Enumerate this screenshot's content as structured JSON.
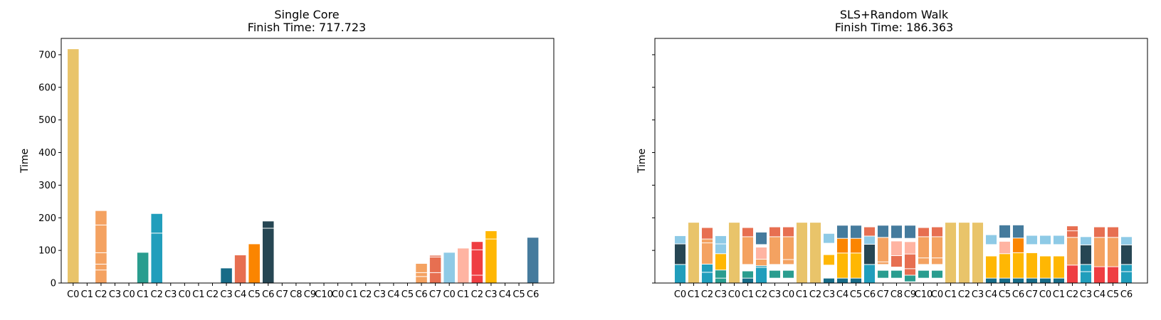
{
  "chart_data": [
    {
      "type": "bar",
      "stacked": true,
      "title": "Single Core",
      "subtitle": "Finish Time: 717.723",
      "xlabel": "",
      "ylabel": "Time",
      "ylim": [
        0,
        750
      ],
      "yticks": [
        0,
        100,
        200,
        300,
        400,
        500,
        600,
        700
      ],
      "grid": false,
      "categories": [
        "C0",
        "C1",
        "C2",
        "C3",
        "C0",
        "C1",
        "C2",
        "C3",
        "C0",
        "C1",
        "C2",
        "C3",
        "C4",
        "C5",
        "C6",
        "C7",
        "C8",
        "C9",
        "C10",
        "C0",
        "C1",
        "C2",
        "C3",
        "C4",
        "C5",
        "C6",
        "C7",
        "C0",
        "C1",
        "C2",
        "C3",
        "C4",
        "C5",
        "C6"
      ],
      "bars": [
        [
          {
            "value": 718,
            "color": "#E9C46A"
          }
        ],
        [],
        [
          {
            "value": 40,
            "color": "#F4A261"
          },
          {
            "value": 18,
            "color": "#F4A261"
          },
          {
            "value": 35,
            "color": "#F4A261"
          },
          {
            "value": 85,
            "color": "#F4A261"
          },
          {
            "value": 44,
            "color": "#F4A261"
          }
        ],
        [],
        [],
        [
          {
            "value": 94,
            "color": "#2A9D8F"
          }
        ],
        [
          {
            "value": 153,
            "color": "#219EBC"
          },
          {
            "value": 60,
            "color": "#219EBC"
          }
        ],
        [],
        [],
        [],
        [],
        [
          {
            "value": 46,
            "color": "#176B87"
          }
        ],
        [
          {
            "value": 86,
            "color": "#E76F51"
          }
        ],
        [
          {
            "value": 120,
            "color": "#FB8500"
          }
        ],
        [
          {
            "value": 168,
            "color": "#264653"
          },
          {
            "value": 22,
            "color": "#264653"
          }
        ],
        [],
        [],
        [],
        [],
        [],
        [],
        [],
        [],
        [],
        [],
        [
          {
            "value": 20,
            "color": "#F4A261"
          },
          {
            "value": 12,
            "color": "#F4A261"
          },
          {
            "value": 28,
            "color": "#F4A261"
          }
        ],
        [
          {
            "value": 32,
            "color": "#E76F51"
          },
          {
            "value": 48,
            "color": "#E76F51"
          },
          {
            "value": 5,
            "color": "#E76F51"
          }
        ],
        [
          {
            "value": 94,
            "color": "#8ECAE6"
          }
        ],
        [
          {
            "value": 107,
            "color": "#FFB4A2"
          }
        ],
        [
          {
            "value": 24,
            "color": "#EF3E42"
          },
          {
            "value": 78,
            "color": "#EF3E42"
          },
          {
            "value": 25,
            "color": "#EF3E42"
          }
        ],
        [
          {
            "value": 135,
            "color": "#FFB703"
          },
          {
            "value": 25,
            "color": "#FFB703"
          }
        ],
        [],
        [],
        [
          {
            "value": 140,
            "color": "#457B9D"
          }
        ]
      ]
    },
    {
      "type": "bar",
      "stacked": true,
      "title": "SLS+Random Walk",
      "subtitle": "Finish Time: 186.363",
      "xlabel": "",
      "ylabel": "Time",
      "ylim": [
        0,
        750
      ],
      "yticks": [
        0,
        100,
        200,
        300,
        400,
        500,
        600,
        700
      ],
      "show_ytick_labels": false,
      "grid": false,
      "categories": [
        "C0",
        "C1",
        "C2",
        "C3",
        "C0",
        "C1",
        "C2",
        "C3",
        "C0",
        "C1",
        "C2",
        "C3",
        "C4",
        "C5",
        "C6",
        "C7",
        "C8",
        "C9",
        "C10",
        "C0",
        "C1",
        "C2",
        "C3",
        "C4",
        "C5",
        "C6",
        "C7",
        "C0",
        "C1",
        "C2",
        "C3",
        "C4",
        "C5",
        "C6"
      ],
      "bars": [
        [
          {
            "value": 57,
            "color": "#219EBC"
          },
          {
            "value": 63,
            "color": "#264653"
          },
          {
            "value": 25,
            "color": "#8ECAE6"
          }
        ],
        [
          {
            "value": 186,
            "color": "#E9C46A"
          }
        ],
        [
          {
            "value": 33,
            "color": "#219EBC"
          },
          {
            "value": 25,
            "color": "#219EBC"
          },
          {
            "value": 65,
            "color": "#F4A261"
          },
          {
            "value": 12,
            "color": "#F4A261"
          },
          {
            "value": 35,
            "color": "#E76F51"
          }
        ],
        [
          {
            "value": 15,
            "color": "#2A9D8F"
          },
          {
            "value": 25,
            "color": "#2A9D8F"
          },
          {
            "value": 50,
            "color": "#FFB703"
          },
          {
            "value": 30,
            "color": "#8ECAE6"
          },
          {
            "value": 25,
            "color": "#8ECAE6"
          }
        ],
        [
          {
            "value": 186,
            "color": "#E9C46A"
          }
        ],
        [
          {
            "value": 15,
            "color": "#176B87"
          },
          {
            "value": 22,
            "color": "#2A9D8F"
          },
          {
            "value": 20,
            "color": "#FFFFFF"
          },
          {
            "value": 85,
            "color": "#F4A261"
          },
          {
            "value": 28,
            "color": "#E76F51"
          }
        ],
        [
          {
            "value": 48,
            "color": "#219EBC"
          },
          {
            "value": 5,
            "color": "#219EBC"
          },
          {
            "value": 20,
            "color": "#F4A261"
          },
          {
            "value": 37,
            "color": "#FFB4A2"
          },
          {
            "value": 8,
            "color": "#FFFFFF"
          },
          {
            "value": 38,
            "color": "#457B9D"
          }
        ],
        [
          {
            "value": 15,
            "color": "#FFFFFF"
          },
          {
            "value": 24,
            "color": "#2A9D8F"
          },
          {
            "value": 18,
            "color": "#FFFFFF"
          },
          {
            "value": 85,
            "color": "#F4A261"
          },
          {
            "value": 30,
            "color": "#E76F51"
          }
        ],
        [
          {
            "value": 15,
            "color": "#FFFFFF"
          },
          {
            "value": 24,
            "color": "#2A9D8F"
          },
          {
            "value": 18,
            "color": "#FFFFFF"
          },
          {
            "value": 15,
            "color": "#F4A261"
          },
          {
            "value": 70,
            "color": "#F4A261"
          },
          {
            "value": 30,
            "color": "#E76F51"
          }
        ],
        [
          {
            "value": 186,
            "color": "#E9C46A"
          }
        ],
        [
          {
            "value": 186,
            "color": "#E9C46A"
          }
        ],
        [
          {
            "value": 15,
            "color": "#176B87"
          },
          {
            "value": 40,
            "color": "#FFFFFF"
          },
          {
            "value": 32,
            "color": "#FFB703"
          },
          {
            "value": 35,
            "color": "#FFFFFF"
          },
          {
            "value": 30,
            "color": "#8ECAE6"
          }
        ],
        [
          {
            "value": 15,
            "color": "#176B87"
          },
          {
            "value": 77,
            "color": "#FFB703"
          },
          {
            "value": 45,
            "color": "#FB8500"
          },
          {
            "value": 40,
            "color": "#457B9D"
          }
        ],
        [
          {
            "value": 15,
            "color": "#176B87"
          },
          {
            "value": 77,
            "color": "#FFB703"
          },
          {
            "value": 45,
            "color": "#FB8500"
          },
          {
            "value": 40,
            "color": "#457B9D"
          }
        ],
        [
          {
            "value": 57,
            "color": "#219EBC"
          },
          {
            "value": 62,
            "color": "#264653"
          },
          {
            "value": 25,
            "color": "#8ECAE6"
          },
          {
            "value": 28,
            "color": "#E76F51"
          }
        ],
        [
          {
            "value": 15,
            "color": "#FFFFFF"
          },
          {
            "value": 24,
            "color": "#2A9D8F"
          },
          {
            "value": 18,
            "color": "#FFFFFF"
          },
          {
            "value": 8,
            "color": "#F4A261"
          },
          {
            "value": 75,
            "color": "#F4A261"
          },
          {
            "value": 37,
            "color": "#457B9D"
          }
        ],
        [
          {
            "value": 15,
            "color": "#FFFFFF"
          },
          {
            "value": 24,
            "color": "#2A9D8F"
          },
          {
            "value": 10,
            "color": "#FFFFFF"
          },
          {
            "value": 35,
            "color": "#E76F51"
          },
          {
            "value": 45,
            "color": "#FFB4A2"
          },
          {
            "value": 8,
            "color": "#FFFFFF"
          },
          {
            "value": 40,
            "color": "#457B9D"
          }
        ],
        [
          {
            "value": 4,
            "color": "#FFFFFF"
          },
          {
            "value": 20,
            "color": "#2A9D8F"
          },
          {
            "value": 20,
            "color": "#E76F51"
          },
          {
            "value": 45,
            "color": "#E76F51"
          },
          {
            "value": 38,
            "color": "#FFB4A2"
          },
          {
            "value": 10,
            "color": "#FFFFFF"
          },
          {
            "value": 40,
            "color": "#457B9D"
          }
        ],
        [
          {
            "value": 15,
            "color": "#FFFFFF"
          },
          {
            "value": 24,
            "color": "#2A9D8F"
          },
          {
            "value": 18,
            "color": "#FFFFFF"
          },
          {
            "value": 20,
            "color": "#F4A261"
          },
          {
            "value": 65,
            "color": "#F4A261"
          },
          {
            "value": 28,
            "color": "#E76F51"
          }
        ],
        [
          {
            "value": 15,
            "color": "#FFFFFF"
          },
          {
            "value": 24,
            "color": "#2A9D8F"
          },
          {
            "value": 18,
            "color": "#FFFFFF"
          },
          {
            "value": 20,
            "color": "#F4A261"
          },
          {
            "value": 65,
            "color": "#F4A261"
          },
          {
            "value": 30,
            "color": "#E76F51"
          }
        ],
        [
          {
            "value": 186,
            "color": "#E9C46A"
          }
        ],
        [
          {
            "value": 186,
            "color": "#E9C46A"
          }
        ],
        [
          {
            "value": 186,
            "color": "#E9C46A"
          }
        ],
        [
          {
            "value": 15,
            "color": "#176B87"
          },
          {
            "value": 68,
            "color": "#FFB703"
          },
          {
            "value": 35,
            "color": "#FFFFFF"
          },
          {
            "value": 30,
            "color": "#8ECAE6"
          }
        ],
        [
          {
            "value": 15,
            "color": "#176B87"
          },
          {
            "value": 75,
            "color": "#FFB703"
          },
          {
            "value": 38,
            "color": "#FFB4A2"
          },
          {
            "value": 10,
            "color": "#FFFFFF"
          },
          {
            "value": 40,
            "color": "#457B9D"
          }
        ],
        [
          {
            "value": 15,
            "color": "#176B87"
          },
          {
            "value": 78,
            "color": "#FFB703"
          },
          {
            "value": 45,
            "color": "#FB8500"
          },
          {
            "value": 40,
            "color": "#457B9D"
          }
        ],
        [
          {
            "value": 15,
            "color": "#176B87"
          },
          {
            "value": 78,
            "color": "#FFB703"
          },
          {
            "value": 25,
            "color": "#FFFFFF"
          },
          {
            "value": 28,
            "color": "#8ECAE6"
          }
        ],
        [
          {
            "value": 15,
            "color": "#176B87"
          },
          {
            "value": 68,
            "color": "#FFB703"
          },
          {
            "value": 35,
            "color": "#FFFFFF"
          },
          {
            "value": 28,
            "color": "#8ECAE6"
          }
        ],
        [
          {
            "value": 15,
            "color": "#176B87"
          },
          {
            "value": 68,
            "color": "#FFB703"
          },
          {
            "value": 35,
            "color": "#FFFFFF"
          },
          {
            "value": 28,
            "color": "#8ECAE6"
          }
        ],
        [
          {
            "value": 55,
            "color": "#EF3E42"
          },
          {
            "value": 85,
            "color": "#F4A261"
          },
          {
            "value": 20,
            "color": "#E76F51"
          },
          {
            "value": 15,
            "color": "#E76F51"
          }
        ],
        [
          {
            "value": 35,
            "color": "#219EBC"
          },
          {
            "value": 22,
            "color": "#219EBC"
          },
          {
            "value": 60,
            "color": "#264653"
          },
          {
            "value": 25,
            "color": "#8ECAE6"
          }
        ],
        [
          {
            "value": 50,
            "color": "#EF3E42"
          },
          {
            "value": 90,
            "color": "#F4A261"
          },
          {
            "value": 32,
            "color": "#E76F51"
          }
        ],
        [
          {
            "value": 50,
            "color": "#EF3E42"
          },
          {
            "value": 90,
            "color": "#F4A261"
          },
          {
            "value": 32,
            "color": "#E76F51"
          }
        ],
        [
          {
            "value": 35,
            "color": "#219EBC"
          },
          {
            "value": 22,
            "color": "#219EBC"
          },
          {
            "value": 60,
            "color": "#264653"
          },
          {
            "value": 25,
            "color": "#8ECAE6"
          }
        ]
      ]
    }
  ]
}
